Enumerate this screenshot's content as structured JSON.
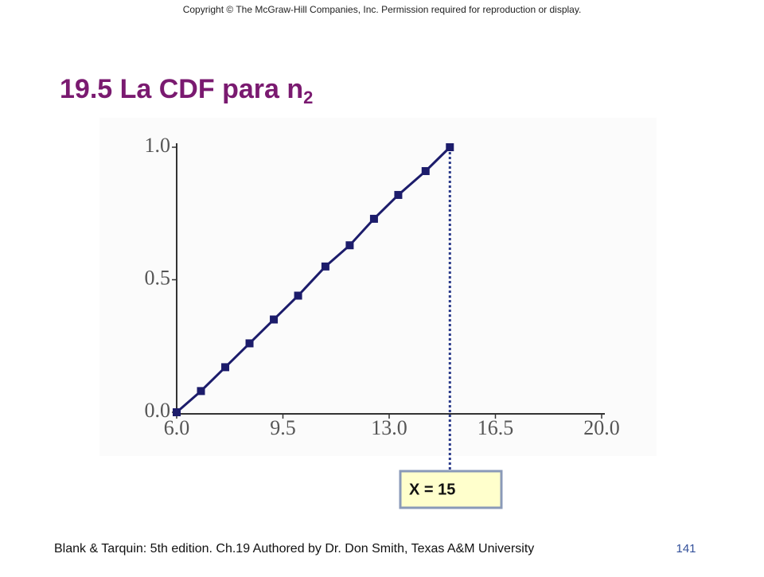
{
  "copyright": "Copyright © The McGraw-Hill Companies, Inc. Permission required for reproduction or display.",
  "title": {
    "text": "19.5 La CDF para n",
    "subscript": "2"
  },
  "chart_data": {
    "type": "line",
    "x": [
      6,
      6.8,
      7.6,
      8.4,
      9.2,
      10,
      10.9,
      11.7,
      12.5,
      13.3,
      14.2,
      15
    ],
    "series": [
      {
        "color": "#1c1c6b",
        "values": [
          0,
          0.08,
          0.17,
          0.26,
          0.35,
          0.44,
          0.55,
          0.63,
          0.73,
          0.82,
          0.91,
          1.0
        ]
      }
    ],
    "xlim": [
      6,
      20
    ],
    "ylim": [
      0,
      1
    ],
    "xticks": [
      {
        "value": 6,
        "label": "6.0"
      },
      9.5,
      {
        "value": 13,
        "label": "13.0"
      },
      16.5,
      {
        "value": 20,
        "label": "20.0"
      }
    ],
    "yticks": [
      {
        "value": 0,
        "label": "0.0"
      },
      0.5,
      {
        "value": 1,
        "label": "1.0"
      }
    ],
    "grid": false,
    "annotation": "X = 15"
  },
  "footer": "Blank & Tarquin: 5th edition. Ch.19 Authored by Dr. Don Smith, Texas A&M University",
  "page_number": "141"
}
